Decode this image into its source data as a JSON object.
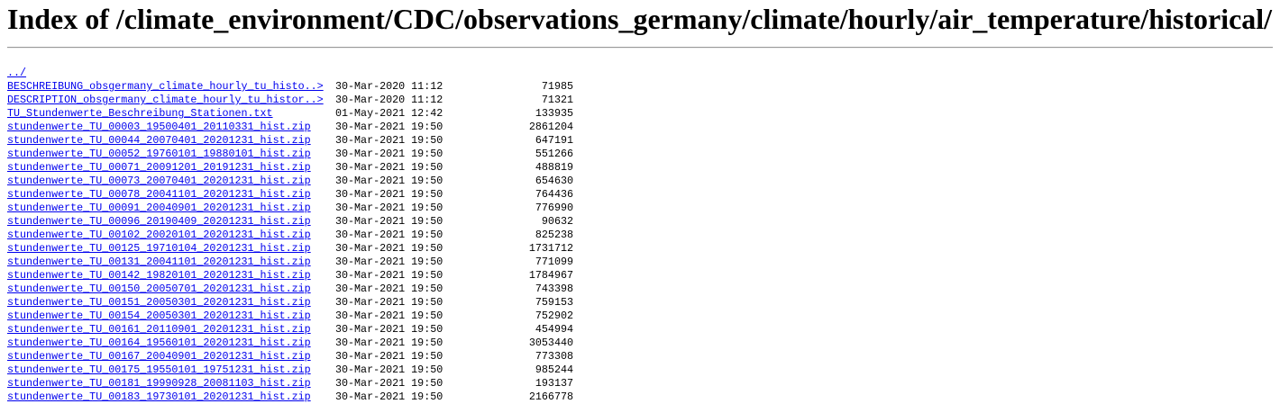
{
  "header": {
    "title": "Index of /climate_environment/CDC/observations_germany/climate/hourly/air_temperature/historical/"
  },
  "parent_link": "../",
  "entries": [
    {
      "name": "BESCHREIBUNG_obsgermany_climate_hourly_tu_histo..>",
      "date": "30-Mar-2020 11:12",
      "size": "71985"
    },
    {
      "name": "DESCRIPTION_obsgermany_climate_hourly_tu_histor..>",
      "date": "30-Mar-2020 11:12",
      "size": "71321"
    },
    {
      "name": "TU_Stundenwerte_Beschreibung_Stationen.txt",
      "date": "01-May-2021 12:42",
      "size": "133935"
    },
    {
      "name": "stundenwerte_TU_00003_19500401_20110331_hist.zip",
      "date": "30-Mar-2021 19:50",
      "size": "2861204"
    },
    {
      "name": "stundenwerte_TU_00044_20070401_20201231_hist.zip",
      "date": "30-Mar-2021 19:50",
      "size": "647191"
    },
    {
      "name": "stundenwerte_TU_00052_19760101_19880101_hist.zip",
      "date": "30-Mar-2021 19:50",
      "size": "551266"
    },
    {
      "name": "stundenwerte_TU_00071_20091201_20191231_hist.zip",
      "date": "30-Mar-2021 19:50",
      "size": "488819"
    },
    {
      "name": "stundenwerte_TU_00073_20070401_20201231_hist.zip",
      "date": "30-Mar-2021 19:50",
      "size": "654630"
    },
    {
      "name": "stundenwerte_TU_00078_20041101_20201231_hist.zip",
      "date": "30-Mar-2021 19:50",
      "size": "764436"
    },
    {
      "name": "stundenwerte_TU_00091_20040901_20201231_hist.zip",
      "date": "30-Mar-2021 19:50",
      "size": "776990"
    },
    {
      "name": "stundenwerte_TU_00096_20190409_20201231_hist.zip",
      "date": "30-Mar-2021 19:50",
      "size": "90632"
    },
    {
      "name": "stundenwerte_TU_00102_20020101_20201231_hist.zip",
      "date": "30-Mar-2021 19:50",
      "size": "825238"
    },
    {
      "name": "stundenwerte_TU_00125_19710104_20201231_hist.zip",
      "date": "30-Mar-2021 19:50",
      "size": "1731712"
    },
    {
      "name": "stundenwerte_TU_00131_20041101_20201231_hist.zip",
      "date": "30-Mar-2021 19:50",
      "size": "771099"
    },
    {
      "name": "stundenwerte_TU_00142_19820101_20201231_hist.zip",
      "date": "30-Mar-2021 19:50",
      "size": "1784967"
    },
    {
      "name": "stundenwerte_TU_00150_20050701_20201231_hist.zip",
      "date": "30-Mar-2021 19:50",
      "size": "743398"
    },
    {
      "name": "stundenwerte_TU_00151_20050301_20201231_hist.zip",
      "date": "30-Mar-2021 19:50",
      "size": "759153"
    },
    {
      "name": "stundenwerte_TU_00154_20050301_20201231_hist.zip",
      "date": "30-Mar-2021 19:50",
      "size": "752902"
    },
    {
      "name": "stundenwerte_TU_00161_20110901_20201231_hist.zip",
      "date": "30-Mar-2021 19:50",
      "size": "454994"
    },
    {
      "name": "stundenwerte_TU_00164_19560101_20201231_hist.zip",
      "date": "30-Mar-2021 19:50",
      "size": "3053440"
    },
    {
      "name": "stundenwerte_TU_00167_20040901_20201231_hist.zip",
      "date": "30-Mar-2021 19:50",
      "size": "773308"
    },
    {
      "name": "stundenwerte_TU_00175_19550101_19751231_hist.zip",
      "date": "30-Mar-2021 19:50",
      "size": "985244"
    },
    {
      "name": "stundenwerte_TU_00181_19990928_20081103_hist.zip",
      "date": "30-Mar-2021 19:50",
      "size": "193137"
    },
    {
      "name": "stundenwerte_TU_00183_19730101_20201231_hist.zip",
      "date": "30-Mar-2021 19:50",
      "size": "2166778"
    }
  ]
}
